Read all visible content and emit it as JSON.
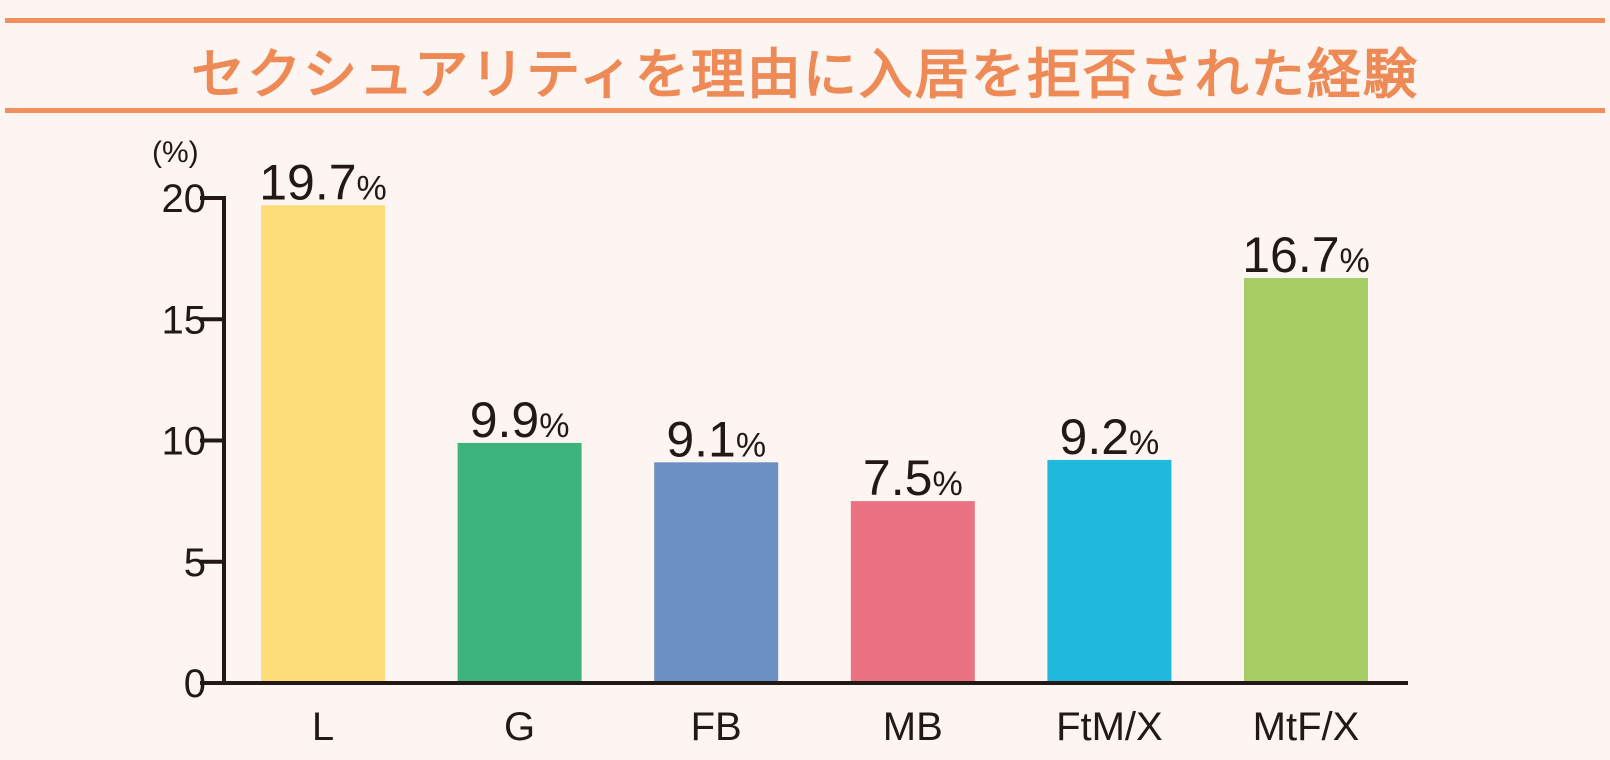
{
  "title": "セクシュアリティを理由に入居を拒否された経験",
  "colors": {
    "background": "#fdf5f1",
    "accent": "#f0905c",
    "axis": "#231815",
    "text": "#231815"
  },
  "chart_data": {
    "type": "bar",
    "title": "セクシュアリティを理由に入居を拒否された経験",
    "ylabel": "(%)",
    "xlabel": "",
    "ylim": [
      0,
      20
    ],
    "yticks": [
      "0",
      "5",
      "10",
      "15",
      "20"
    ],
    "categories": [
      "L",
      "G",
      "FB",
      "MB",
      "FtM/X",
      "MtF/X"
    ],
    "values": [
      19.7,
      9.9,
      9.1,
      7.5,
      9.2,
      16.7
    ],
    "labels": [
      "19.7",
      "9.9",
      "9.1",
      "7.5",
      "9.2",
      "16.7"
    ],
    "label_suffix": "%",
    "bar_colors": [
      "#fddc7a",
      "#3cb47b",
      "#6b90c4",
      "#ea7282",
      "#20b9dc",
      "#a6cc64"
    ],
    "grid": false,
    "legend": "none"
  }
}
